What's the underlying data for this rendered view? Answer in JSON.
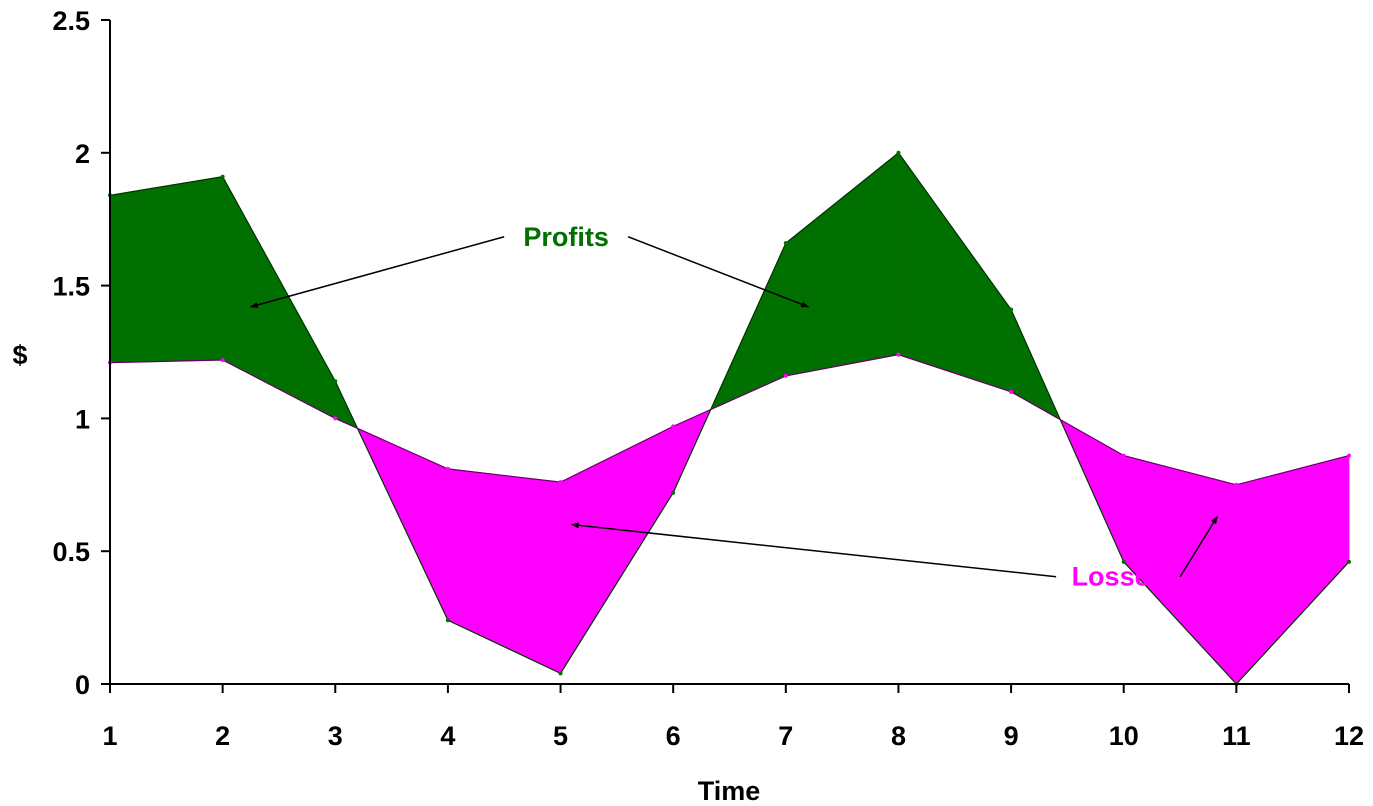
{
  "chart_data": {
    "type": "area",
    "title": "",
    "xlabel": "Time",
    "ylabel": "$",
    "x": [
      1,
      2,
      3,
      4,
      5,
      6,
      7,
      8,
      9,
      10,
      11,
      12
    ],
    "x_tick_labels": [
      "1",
      "2",
      "3",
      "4",
      "5",
      "6",
      "7",
      "8",
      "9",
      "10",
      "11",
      "12"
    ],
    "ylim": [
      0,
      2.5
    ],
    "y_ticks": [
      0,
      0.5,
      1,
      1.5,
      2,
      2.5
    ],
    "y_tick_labels": [
      "0",
      "0.5",
      "1",
      "1.5",
      "2",
      "2.5"
    ],
    "grid": false,
    "series": [
      {
        "values": [
          1.84,
          1.91,
          1.14,
          0.24,
          0.04,
          0.72,
          1.66,
          2.0,
          1.41,
          0.46,
          0.0,
          0.46
        ]
      },
      {
        "values": [
          1.21,
          1.22,
          1.0,
          0.81,
          0.76,
          0.97,
          1.16,
          1.24,
          1.1,
          0.86,
          0.75,
          0.86
        ]
      }
    ],
    "fill_above_color": "#007000",
    "fill_below_color": "#ff00ff",
    "annotations": [
      {
        "text": "Profits",
        "color": "#007000",
        "anchor": [
          5.05,
          1.65
        ],
        "targets": [
          [
            2.25,
            1.42
          ],
          [
            7.2,
            1.42
          ]
        ]
      },
      {
        "text": "Losses",
        "color": "#ff00ff",
        "anchor": [
          9.95,
          0.37
        ],
        "targets": [
          [
            5.1,
            0.6
          ],
          [
            10.83,
            0.63
          ]
        ]
      }
    ]
  }
}
